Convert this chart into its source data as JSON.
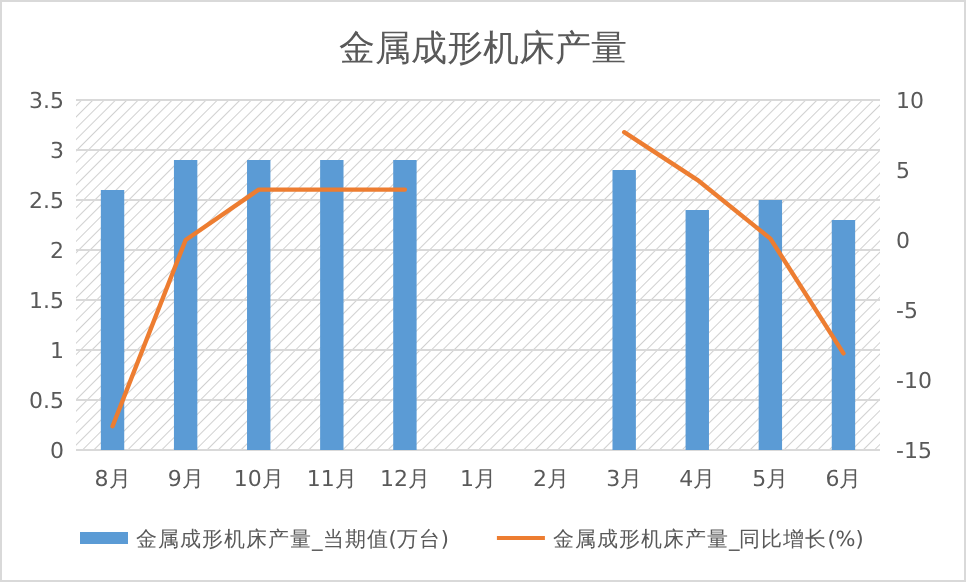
{
  "chart_data": {
    "type": "bar",
    "title": "金属成形机床产量",
    "categories": [
      "8月",
      "9月",
      "10月",
      "11月",
      "12月",
      "1月",
      "2月",
      "3月",
      "4月",
      "5月",
      "6月"
    ],
    "series": [
      {
        "name": "金属成形机床产量_当期值(万台)",
        "color": "#5b9bd5",
        "values": [
          2.6,
          2.9,
          2.9,
          2.9,
          2.9,
          null,
          null,
          2.8,
          2.4,
          2.5,
          2.3
        ]
      },
      {
        "name": "金属成形机床产量_同比增长(%)",
        "type": "line",
        "axis": "y2",
        "color": "#ed7d31",
        "values": [
          -13.3,
          0,
          3.6,
          3.6,
          3.6,
          null,
          null,
          7.7,
          4.3,
          0.1,
          -8.1
        ]
      }
    ],
    "ylim": [
      0,
      3.5
    ],
    "yticks": [
      0,
      0.5,
      1,
      1.5,
      2,
      2.5,
      3,
      3.5
    ],
    "y2lim": [
      -15,
      10
    ],
    "y2ticks": [
      -15,
      -10,
      -5,
      0,
      5,
      10
    ],
    "grid": "y",
    "legend": "bottom"
  }
}
